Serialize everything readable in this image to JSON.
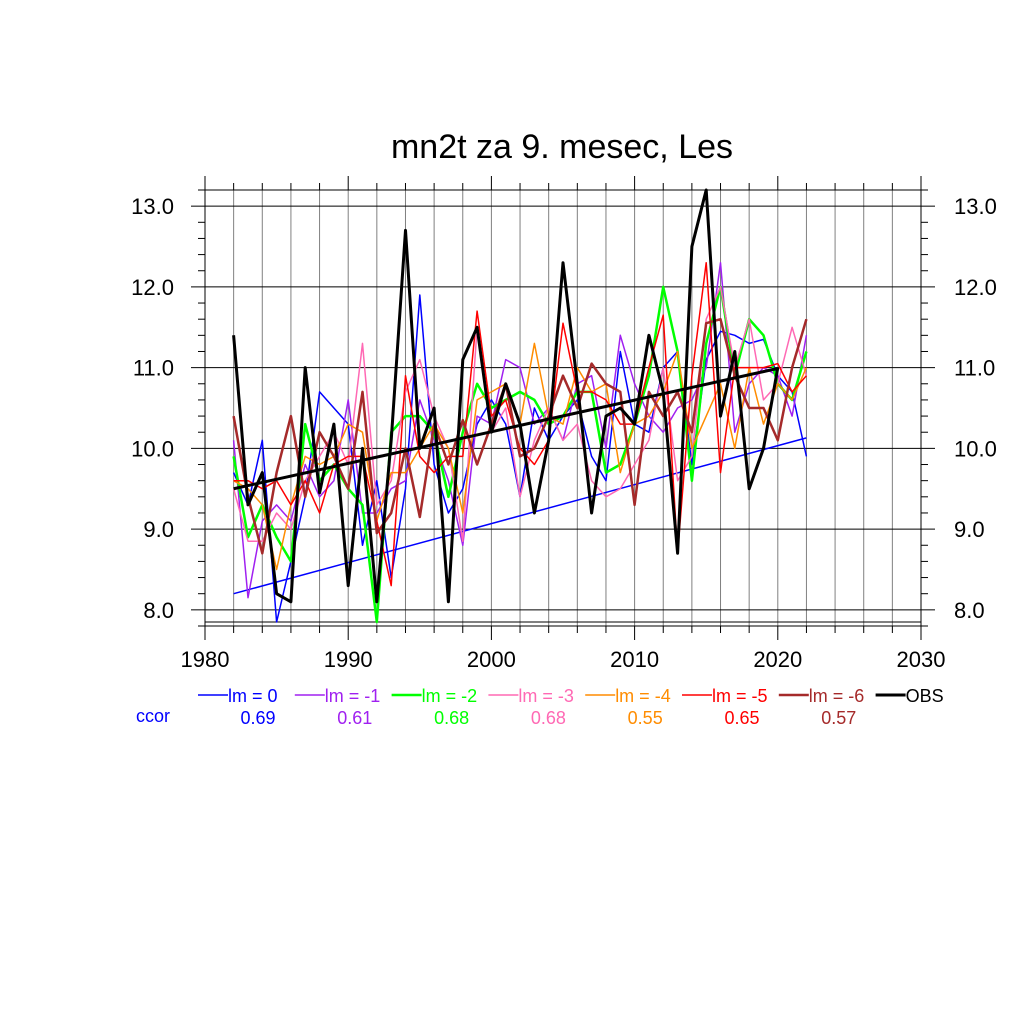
{
  "chart_data": {
    "type": "line",
    "title": "mn2t za 9. mesec, Les",
    "xlabel": "",
    "ylabel": "",
    "xlim": [
      1980,
      2030
    ],
    "ylim": [
      7.8,
      13.2
    ],
    "x_ticks": [
      "1980",
      "1990",
      "2000",
      "2010",
      "2020",
      "2030"
    ],
    "y_ticks": [
      "8.0",
      "9.0",
      "10.0",
      "11.0",
      "12.0",
      "13.0"
    ],
    "x_minor_step": 2,
    "y_minor_step": 0.2,
    "grid": true,
    "legend_position": "bottom",
    "ccor_label": "ccor",
    "series": [
      {
        "name": "lm = 0",
        "color": "#0000ff",
        "width": 1.5,
        "ccor": "0.69",
        "x0": 1982,
        "values": [
          9.7,
          9.3,
          10.1,
          7.85,
          8.6,
          9.4,
          10.7,
          10.5,
          10.3,
          8.8,
          9.6,
          8.4,
          9.5,
          11.9,
          9.8,
          9.2,
          9.5,
          10.3,
          10.6,
          10.3,
          9.4,
          10.5,
          10.1,
          10.4,
          10.6,
          9.9,
          9.6,
          11.2,
          10.3,
          10.2,
          11.0,
          11.2,
          9.8,
          11.1,
          11.45,
          11.4,
          11.3,
          11.35,
          10.9,
          10.7,
          9.9
        ],
        "trend": [
          8.2,
          10.13
        ]
      },
      {
        "name": "lm = -1",
        "color": "#a020f0",
        "width": 1.5,
        "ccor": "0.61",
        "x0": 1982,
        "values": [
          10.1,
          8.15,
          9.1,
          9.3,
          9.1,
          9.8,
          9.4,
          9.6,
          10.6,
          9.2,
          9.2,
          9.5,
          9.6,
          10.6,
          10.1,
          9.6,
          8.8,
          10.4,
          10.3,
          11.1,
          11.0,
          10.3,
          10.5,
          10.1,
          10.8,
          10.9,
          10.0,
          11.4,
          10.8,
          10.4,
          10.2,
          10.5,
          10.6,
          11.0,
          12.3,
          10.2,
          10.8,
          11.0,
          10.9,
          10.4,
          11.4
        ]
      },
      {
        "name": "lm = -2",
        "color": "#00ff00",
        "width": 2.5,
        "ccor": "0.68",
        "x0": 1982,
        "values": [
          9.9,
          8.9,
          9.3,
          8.9,
          8.6,
          10.3,
          9.6,
          9.8,
          9.5,
          9.3,
          7.85,
          10.2,
          10.4,
          10.4,
          10.2,
          9.4,
          10.2,
          10.8,
          10.5,
          10.6,
          10.7,
          10.6,
          10.3,
          10.4,
          10.7,
          10.7,
          9.7,
          9.8,
          10.3,
          10.9,
          12.0,
          11.2,
          9.6,
          11.3,
          12.0,
          10.9,
          11.6,
          11.4,
          10.8,
          10.6,
          11.2
        ]
      },
      {
        "name": "lm = -3",
        "color": "#ff69b4",
        "width": 1.5,
        "ccor": "0.68",
        "x0": 1982,
        "values": [
          9.5,
          8.85,
          8.85,
          9.2,
          9.0,
          9.6,
          9.9,
          10.2,
          9.8,
          11.3,
          9.3,
          9.6,
          10.7,
          11.1,
          10.4,
          10.0,
          8.85,
          11.5,
          10.2,
          10.5,
          9.4,
          10.1,
          10.5,
          10.1,
          10.3,
          9.6,
          9.4,
          9.5,
          9.8,
          10.1,
          11.0,
          9.6,
          9.9,
          11.6,
          12.0,
          11.0,
          11.6,
          10.6,
          10.8,
          11.5,
          10.9
        ]
      },
      {
        "name": "lm = -4",
        "color": "#ff8c00",
        "width": 1.5,
        "ccor": "0.55",
        "x0": 1982,
        "values": [
          9.6,
          9.5,
          9.3,
          8.5,
          9.3,
          9.9,
          9.8,
          9.9,
          10.3,
          10.2,
          9.1,
          9.7,
          9.7,
          10.0,
          10.3,
          10.0,
          9.2,
          10.6,
          10.7,
          10.8,
          10.3,
          11.3,
          10.4,
          10.3,
          11.0,
          10.7,
          10.8,
          9.7,
          10.3,
          10.4,
          10.7,
          11.2,
          10.0,
          10.4,
          10.8,
          10.0,
          11.0,
          10.3,
          10.8,
          10.6,
          11.0
        ]
      },
      {
        "name": "lm = -5",
        "color": "#ff0000",
        "width": 1.5,
        "ccor": "0.65",
        "x0": 1982,
        "values": [
          9.6,
          9.6,
          9.5,
          9.6,
          9.3,
          9.6,
          9.2,
          9.8,
          9.9,
          9.9,
          9.1,
          8.3,
          10.9,
          9.9,
          9.7,
          9.9,
          9.9,
          11.7,
          10.4,
          10.6,
          10.0,
          9.8,
          10.1,
          11.55,
          10.7,
          10.7,
          10.6,
          10.3,
          10.3,
          11.0,
          11.65,
          8.7,
          10.9,
          12.3,
          9.7,
          11.0,
          11.0,
          11.0,
          11.05,
          10.7,
          10.9
        ]
      },
      {
        "name": "lm = -6",
        "color": "#a52a2a",
        "width": 2.5,
        "ccor": "0.57",
        "x0": 1982,
        "values": [
          10.4,
          9.4,
          8.7,
          9.7,
          10.4,
          9.4,
          10.2,
          9.9,
          9.5,
          10.7,
          8.95,
          9.2,
          10.0,
          9.15,
          10.3,
          9.8,
          10.35,
          9.8,
          10.3,
          10.8,
          9.9,
          10.0,
          10.4,
          10.9,
          10.5,
          11.05,
          10.8,
          10.7,
          9.3,
          10.7,
          10.4,
          10.7,
          10.2,
          11.55,
          11.6,
          10.9,
          10.5,
          10.5,
          10.1,
          11.0,
          11.6
        ]
      },
      {
        "name": "OBS",
        "color": "#000000",
        "width": 3,
        "ccor": "",
        "x0": 1982,
        "values": [
          11.4,
          9.3,
          9.7,
          8.2,
          8.1,
          11.0,
          9.45,
          10.3,
          8.3,
          10.0,
          8.1,
          10.1,
          12.7,
          10.0,
          10.5,
          8.1,
          11.1,
          11.5,
          10.2,
          10.8,
          10.3,
          9.2,
          10.1,
          12.3,
          10.8,
          9.2,
          10.4,
          10.5,
          10.3,
          11.4,
          10.7,
          8.7,
          12.5,
          13.2,
          10.4,
          11.2,
          9.5,
          10.0,
          11.0
        ],
        "trend": [
          9.5,
          10.99
        ]
      }
    ]
  }
}
